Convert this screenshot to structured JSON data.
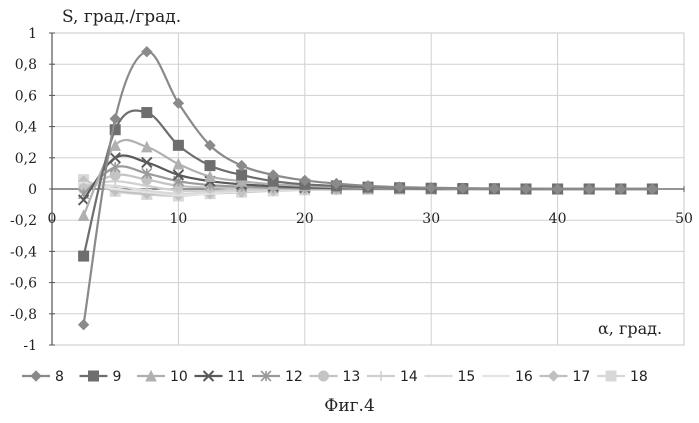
{
  "figure": {
    "caption": "Фиг.4"
  },
  "chart_data": {
    "type": "line",
    "title": "",
    "ylabel": "S, град./град.",
    "xlabel": "α, град.",
    "xlim": [
      0,
      50
    ],
    "ylim": [
      -1,
      1
    ],
    "x_ticks": [
      0,
      10,
      20,
      30,
      40,
      50
    ],
    "x_tick_labels": [
      "0",
      "10",
      "20",
      "30",
      "40",
      "50"
    ],
    "y_ticks": [
      -1,
      -0.8,
      -0.6,
      -0.4,
      -0.2,
      0,
      0.2,
      0.4,
      0.6,
      0.8,
      1
    ],
    "y_tick_labels": [
      "-1",
      "-0,8",
      "-0,6",
      "-0,4",
      "-0,2",
      "0",
      "0,2",
      "0,4",
      "0,6",
      "0,8",
      "1"
    ],
    "grid": true,
    "legend_position": "bottom",
    "x": [
      2.5,
      5,
      7.5,
      10,
      12.5,
      15,
      17.5,
      20,
      22.5,
      25,
      27.5,
      30,
      32.5,
      35,
      37.5,
      40,
      42.5,
      45,
      47.5
    ],
    "series": [
      {
        "name": "8",
        "color": "#8a8a8a",
        "marker": "diamond",
        "values": [
          -0.87,
          0.45,
          0.88,
          0.55,
          0.28,
          0.15,
          0.09,
          0.055,
          0.035,
          0.02,
          0.012,
          0.008,
          0.005,
          0.003,
          0.002,
          0.0,
          0.0,
          0.0,
          0.0
        ]
      },
      {
        "name": "9",
        "color": "#6e6e6e",
        "marker": "square",
        "values": [
          -0.43,
          0.38,
          0.49,
          0.28,
          0.15,
          0.09,
          0.05,
          0.03,
          0.02,
          0.012,
          0.008,
          0.005,
          0.003,
          0.002,
          0.0,
          0.0,
          0.0,
          0.0,
          0.0
        ]
      },
      {
        "name": "10",
        "color": "#b0b0b0",
        "marker": "triangle",
        "values": [
          -0.17,
          0.28,
          0.27,
          0.16,
          0.08,
          0.05,
          0.03,
          0.02,
          0.012,
          0.007,
          0.004,
          0.002,
          0.0,
          0.0,
          0.0,
          0.0,
          0.0,
          0.0,
          0.0
        ]
      },
      {
        "name": "11",
        "color": "#5a5a5a",
        "marker": "x",
        "values": [
          -0.07,
          0.2,
          0.17,
          0.09,
          0.05,
          0.03,
          0.018,
          0.01,
          0.006,
          0.004,
          0.002,
          0.0,
          0.0,
          0.0,
          0.0,
          0.0,
          0.0,
          0.0,
          0.0
        ]
      },
      {
        "name": "12",
        "color": "#9a9a9a",
        "marker": "star",
        "values": [
          -0.03,
          0.14,
          0.1,
          0.05,
          0.025,
          0.015,
          0.008,
          0.005,
          0.003,
          0.002,
          0.0,
          0.0,
          0.0,
          0.0,
          0.0,
          0.0,
          0.0,
          0.0,
          0.0
        ]
      },
      {
        "name": "13",
        "color": "#c4c4c4",
        "marker": "circle",
        "values": [
          0.0,
          0.09,
          0.06,
          0.02,
          0.01,
          0.005,
          0.003,
          0.0,
          0.0,
          0.0,
          0.0,
          0.0,
          0.0,
          0.0,
          0.0,
          0.0,
          0.0,
          0.0,
          0.0
        ]
      },
      {
        "name": "14",
        "color": "#d0d0d0",
        "marker": "plus",
        "values": [
          0.02,
          0.05,
          0.02,
          -0.01,
          -0.01,
          -0.005,
          0.0,
          0.0,
          0.0,
          0.0,
          0.0,
          0.0,
          0.0,
          0.0,
          0.0,
          0.0,
          0.0,
          0.0,
          0.0
        ]
      },
      {
        "name": "15",
        "color": "#dadada",
        "marker": "dash",
        "values": [
          0.03,
          0.02,
          -0.01,
          -0.03,
          -0.02,
          -0.01,
          -0.005,
          0.0,
          0.0,
          0.0,
          0.0,
          0.0,
          0.0,
          0.0,
          0.0,
          0.0,
          0.0,
          0.0,
          0.0
        ]
      },
      {
        "name": "16",
        "color": "#e4e4e4",
        "marker": "dash",
        "values": [
          0.04,
          0.0,
          -0.02,
          -0.04,
          -0.03,
          -0.015,
          -0.008,
          -0.004,
          0.0,
          0.0,
          0.0,
          0.0,
          0.0,
          0.0,
          0.0,
          0.0,
          0.0,
          0.0,
          0.0
        ]
      },
      {
        "name": "17",
        "color": "#c0c0c0",
        "marker": "diamond",
        "values": [
          0.05,
          -0.01,
          -0.03,
          -0.04,
          -0.03,
          -0.02,
          -0.01,
          -0.005,
          -0.003,
          0.0,
          0.0,
          0.0,
          0.0,
          0.0,
          0.0,
          0.0,
          0.0,
          0.0,
          0.0
        ]
      },
      {
        "name": "18",
        "color": "#d8d8d8",
        "marker": "square",
        "values": [
          0.06,
          -0.015,
          -0.035,
          -0.045,
          -0.03,
          -0.02,
          -0.012,
          -0.006,
          -0.003,
          -0.002,
          -0.001,
          0.0,
          0.0,
          0.0,
          0.0,
          0.0,
          0.0,
          0.0,
          0.0
        ]
      }
    ]
  }
}
